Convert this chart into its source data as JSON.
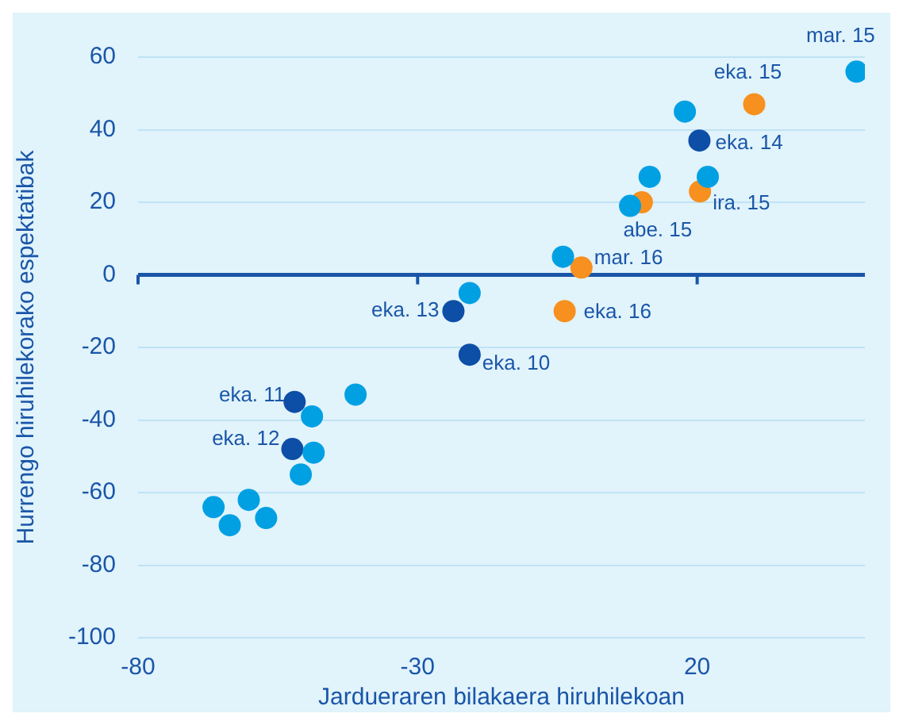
{
  "chart_data": {
    "type": "scatter",
    "xlabel": "Jardueraren bilakaera hiruhilekoan",
    "ylabel": "Hurrengo hiruhilekorako espektatibak",
    "xlim": [
      -80,
      50
    ],
    "xticks": [
      -80,
      -30,
      20
    ],
    "ylim": [
      -100,
      60
    ],
    "yticks": [
      -100,
      -80,
      -60,
      -40,
      -20,
      0,
      20,
      40,
      60
    ],
    "grid": "y",
    "legend": false,
    "ref_lines": [
      {
        "axis": "y",
        "value": 0,
        "color": "#1a56a8"
      }
    ],
    "marker": "circle",
    "series": [
      {
        "color": "#00a0e3",
        "x": [
          48.5,
          17.8,
          11.5,
          21.9,
          8.0,
          -4.0,
          -20.7,
          -41.1,
          -48.9,
          -48.6,
          -50.9,
          -60.2,
          -66.5,
          -57.1,
          -63.6
        ],
        "values": [
          56,
          45,
          27,
          27,
          19,
          5,
          -5,
          -33,
          -39,
          -49,
          -55,
          -62,
          -64,
          -67,
          -69
        ]
      },
      {
        "color": "#0d4ea6",
        "x": [
          20.4,
          -23.6,
          -20.7,
          -52.0,
          -52.4
        ],
        "values": [
          37,
          -10,
          -22,
          -35,
          -48
        ]
      },
      {
        "color": "#f7901e",
        "x": [
          30.2,
          20.5,
          10.1,
          -0.7,
          -3.7
        ],
        "values": [
          47,
          23,
          20,
          2,
          -10
        ]
      }
    ],
    "annotations": [
      {
        "text": "mar. 15",
        "x": 48.5,
        "y": 56
      },
      {
        "text": "eka. 15",
        "x": 30.2,
        "y": 47
      },
      {
        "text": "eka. 14",
        "x": 20.4,
        "y": 37
      },
      {
        "text": "ira. 15",
        "x": 20.5,
        "y": 23
      },
      {
        "text": "abe. 15",
        "x": 10.1,
        "y": 20
      },
      {
        "text": "mar. 16",
        "x": -0.7,
        "y": 2
      },
      {
        "text": "eka. 13",
        "x": -23.6,
        "y": -10
      },
      {
        "text": "eka. 16",
        "x": -3.7,
        "y": -10
      },
      {
        "text": "eka. 10",
        "x": -20.7,
        "y": -22
      },
      {
        "text": "eka. 11",
        "x": -52.0,
        "y": -35
      },
      {
        "text": "eka. 12",
        "x": -52.4,
        "y": -48
      }
    ]
  }
}
